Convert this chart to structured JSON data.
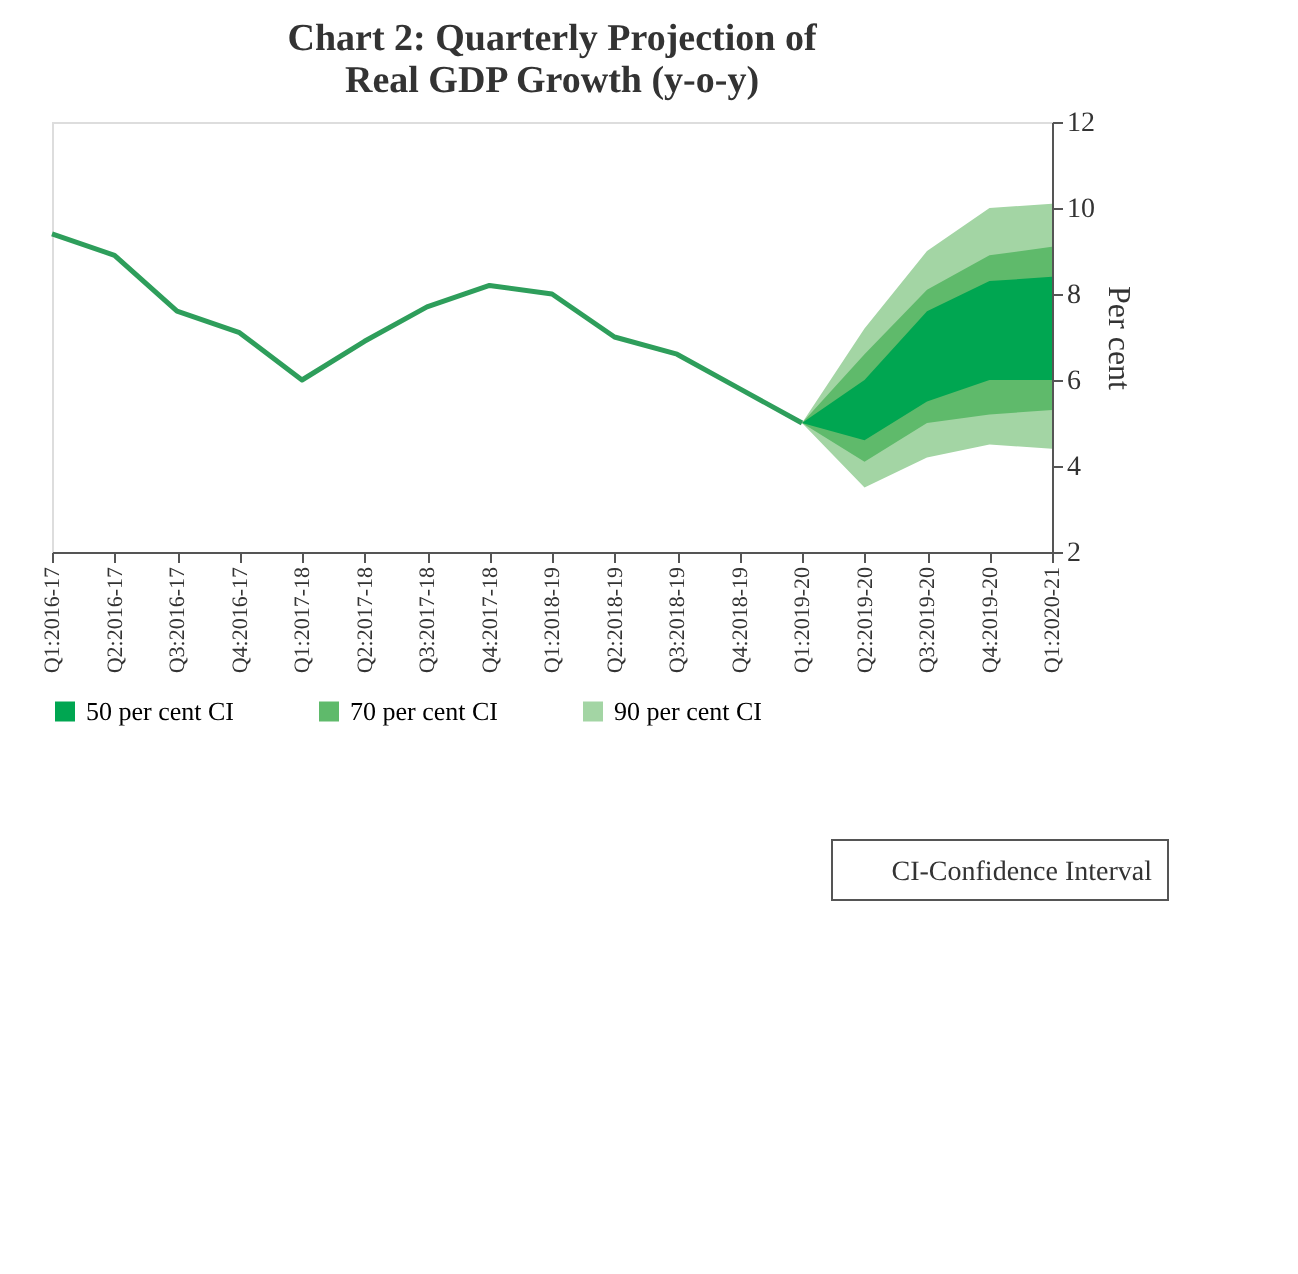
{
  "chart_data": {
    "type": "line",
    "title": [
      "Chart 2: Quarterly Projection of",
      "Real GDP Growth (y-o-y)"
    ],
    "ylabel": "Per cent",
    "categories": [
      "Q1:2016-17",
      "Q2:2016-17",
      "Q3:2016-17",
      "Q4:2016-17",
      "Q1:2017-18",
      "Q2:2017-18",
      "Q3:2017-18",
      "Q4:2017-18",
      "Q1:2018-19",
      "Q2:2018-19",
      "Q3:2018-19",
      "Q4:2018-19",
      "Q1:2019-20",
      "Q2:2019-20",
      "Q3:2019-20",
      "Q4:2019-20",
      "Q1:2020-21"
    ],
    "series": [
      {
        "type": "line",
        "color": "#2e9e5b",
        "values": [
          9.4,
          8.9,
          7.6,
          7.1,
          6.0,
          6.9,
          7.7,
          8.2,
          8.0,
          7.0,
          6.6,
          5.8,
          5.0,
          null,
          null,
          null,
          null
        ]
      },
      {
        "name": "50 per cent CI",
        "type": "area",
        "color": "#00a651",
        "values": [
          null,
          null,
          null,
          null,
          null,
          null,
          null,
          null,
          null,
          null,
          null,
          null,
          null,
          null,
          null,
          null,
          null
        ],
        "lower": [
          null,
          null,
          null,
          null,
          null,
          null,
          null,
          null,
          null,
          null,
          null,
          null,
          5.0,
          4.6,
          5.5,
          6.0,
          6.0
        ],
        "upper": [
          null,
          null,
          null,
          null,
          null,
          null,
          null,
          null,
          null,
          null,
          null,
          null,
          5.0,
          6.0,
          7.6,
          8.3,
          8.4
        ]
      },
      {
        "name": "70 per cent CI",
        "type": "area",
        "color": "#5fba6b",
        "values": [
          null,
          null,
          null,
          null,
          null,
          null,
          null,
          null,
          null,
          null,
          null,
          null,
          null,
          null,
          null,
          null,
          null
        ],
        "lower": [
          null,
          null,
          null,
          null,
          null,
          null,
          null,
          null,
          null,
          null,
          null,
          null,
          5.0,
          4.1,
          5.0,
          5.2,
          5.3
        ],
        "upper": [
          null,
          null,
          null,
          null,
          null,
          null,
          null,
          null,
          null,
          null,
          null,
          null,
          5.0,
          6.6,
          8.1,
          8.9,
          9.1
        ]
      },
      {
        "name": "90 per cent CI",
        "type": "area",
        "color": "#a3d5a4",
        "values": [
          null,
          null,
          null,
          null,
          null,
          null,
          null,
          null,
          null,
          null,
          null,
          null,
          null,
          null,
          null,
          null,
          null
        ],
        "lower": [
          null,
          null,
          null,
          null,
          null,
          null,
          null,
          null,
          null,
          null,
          null,
          null,
          5.0,
          3.5,
          4.2,
          4.5,
          4.4
        ],
        "upper": [
          null,
          null,
          null,
          null,
          null,
          null,
          null,
          null,
          null,
          null,
          null,
          null,
          5.0,
          7.2,
          9.0,
          10.0,
          10.1
        ]
      }
    ],
    "ylim": [
      2,
      12
    ],
    "yticks": [
      2,
      4,
      6,
      8,
      10,
      12
    ],
    "grid": false,
    "legend": "bottom",
    "annotations": [
      "CI-Confidence Interval"
    ]
  }
}
